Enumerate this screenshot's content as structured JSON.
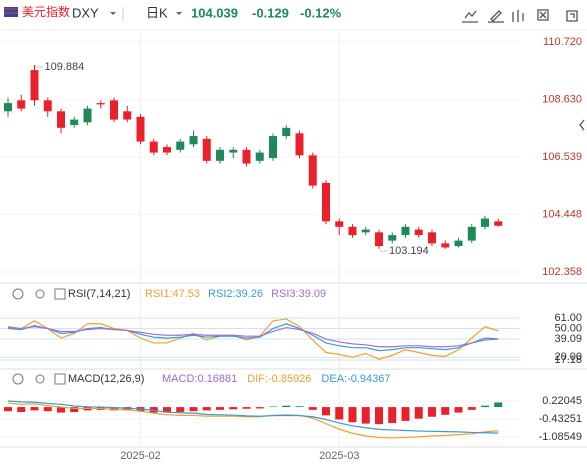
{
  "header": {
    "name": "美元指数",
    "code": "DXY",
    "period": "日K",
    "price": "104.039",
    "change": "-0.129",
    "change_pct": "-0.12%"
  },
  "chart_data": {
    "type": "candlestick",
    "categories": [
      null,
      null,
      null,
      null,
      null,
      null,
      null,
      null,
      null,
      null,
      "2025-02",
      null,
      null,
      null,
      null,
      null,
      null,
      null,
      null,
      null,
      null,
      null,
      null,
      null,
      null,
      "2025-03",
      null,
      null,
      null,
      null,
      null,
      null,
      null,
      null,
      null,
      null,
      null,
      null
    ],
    "ohlc": [
      [
        108.2,
        108.7,
        108.0,
        108.5
      ],
      [
        108.6,
        108.8,
        108.2,
        108.3
      ],
      [
        109.7,
        109.884,
        108.4,
        108.6
      ],
      [
        108.6,
        108.7,
        108.0,
        108.2
      ],
      [
        108.2,
        108.3,
        107.4,
        107.6
      ],
      [
        107.7,
        108.0,
        107.6,
        107.9
      ],
      [
        107.8,
        108.4,
        107.7,
        108.3
      ],
      [
        108.5,
        108.6,
        108.3,
        108.45
      ],
      [
        108.6,
        108.7,
        107.8,
        107.9
      ],
      [
        108.2,
        108.4,
        107.8,
        107.9
      ],
      [
        108.0,
        108.1,
        107.0,
        107.1
      ],
      [
        107.1,
        107.2,
        106.6,
        106.7
      ],
      [
        106.9,
        107.0,
        106.6,
        106.7
      ],
      [
        106.8,
        107.2,
        106.7,
        107.1
      ],
      [
        107.0,
        107.5,
        106.9,
        107.3
      ],
      [
        107.2,
        107.3,
        106.3,
        106.4
      ],
      [
        106.4,
        106.9,
        106.3,
        106.8
      ],
      [
        106.7,
        106.9,
        106.5,
        106.8
      ],
      [
        106.8,
        106.9,
        106.2,
        106.3
      ],
      [
        106.4,
        106.8,
        106.3,
        106.7
      ],
      [
        106.5,
        107.4,
        106.4,
        107.3
      ],
      [
        107.3,
        107.7,
        107.2,
        107.6
      ],
      [
        107.4,
        107.5,
        106.5,
        106.6
      ],
      [
        106.6,
        106.7,
        105.4,
        105.5
      ],
      [
        105.6,
        105.7,
        104.1,
        104.2
      ],
      [
        104.2,
        104.3,
        103.7,
        104.0
      ],
      [
        104.0,
        104.1,
        103.6,
        103.7
      ],
      [
        103.8,
        104.0,
        103.7,
        103.9
      ],
      [
        103.8,
        103.9,
        103.194,
        103.3
      ],
      [
        103.5,
        103.8,
        103.4,
        103.7
      ],
      [
        103.7,
        104.1,
        103.6,
        104.0
      ],
      [
        103.9,
        104.0,
        103.6,
        103.7
      ],
      [
        103.8,
        103.9,
        103.3,
        103.4
      ],
      [
        103.4,
        103.5,
        103.2,
        103.25
      ],
      [
        103.3,
        103.6,
        103.25,
        103.5
      ],
      [
        103.5,
        104.1,
        103.4,
        104.0
      ],
      [
        104.0,
        104.4,
        103.9,
        104.3
      ],
      [
        104.2,
        104.3,
        104.0,
        104.039
      ]
    ],
    "up_color": "#1e8a5a",
    "down_color": "#e8212b",
    "ylim": [
      102.358,
      110.72
    ],
    "yticks": [
      {
        "value": 110.72,
        "label": "110.720"
      },
      {
        "value": 108.63,
        "label": "108.630"
      },
      106.539,
      104.448,
      102.358
    ],
    "rsi": {
      "title": "RSI(7,14,21)",
      "ylim": [
        17.18,
        61
      ],
      "yticks": [
        {
          "value": 61,
          "label": "61.00"
        },
        {
          "value": 50,
          "label": "50.00"
        },
        39.09,
        {
          "value": 20,
          "label": "20.00"
        },
        17.18
      ],
      "series": [
        {
          "name": "RSI1:47.53",
          "color": "#f0a030",
          "values": [
            52,
            50,
            58,
            50,
            40,
            45,
            55,
            55,
            50,
            48,
            40,
            35,
            35,
            40,
            45,
            38,
            42,
            43,
            38,
            42,
            58,
            60,
            52,
            38,
            25,
            23,
            20,
            24,
            18,
            22,
            28,
            25,
            22,
            21,
            28,
            40,
            52,
            47.53
          ]
        },
        {
          "name": "RSI2:39.26",
          "color": "#3a9ad9",
          "values": [
            50,
            49,
            53,
            50,
            45,
            46,
            50,
            51,
            49,
            48,
            44,
            41,
            40,
            41,
            43,
            41,
            42,
            42,
            40,
            41,
            50,
            55,
            50,
            43,
            35,
            32,
            30,
            30,
            27,
            28,
            30,
            30,
            29,
            28,
            30,
            35,
            40,
            39.26
          ]
        },
        {
          "name": "RSI3:39.09",
          "color": "#a070d0",
          "values": [
            51,
            50,
            52,
            50,
            47,
            47,
            49,
            50,
            49,
            48,
            46,
            44,
            43,
            43,
            44,
            43,
            43,
            43,
            42,
            42,
            47,
            51,
            49,
            45,
            39,
            36,
            34,
            33,
            31,
            31,
            32,
            32,
            31,
            31,
            32,
            35,
            38,
            39.09
          ]
        }
      ]
    },
    "macd": {
      "title": "MACD(12,26,9)",
      "ylim": [
        -1.08549,
        0.22045
      ],
      "yticks": [
        0.22045,
        -0.43251,
        -1.08549
      ],
      "hist": {
        "name": "MACD:0.16881",
        "color": "#9b6bd0",
        "values": [
          -0.15,
          -0.18,
          -0.12,
          -0.15,
          -0.2,
          -0.18,
          -0.12,
          -0.1,
          -0.12,
          -0.12,
          -0.15,
          -0.2,
          -0.2,
          -0.18,
          -0.15,
          -0.12,
          -0.1,
          -0.08,
          -0.06,
          -0.05,
          0.02,
          0.05,
          0.03,
          -0.1,
          -0.3,
          -0.45,
          -0.55,
          -0.6,
          -0.62,
          -0.58,
          -0.5,
          -0.42,
          -0.35,
          -0.28,
          -0.2,
          -0.1,
          0.05,
          0.16881
        ]
      },
      "series": [
        {
          "name": "DIF:-0.85926",
          "color": "#f0a030",
          "values": [
            0.15,
            0.1,
            0.12,
            0.05,
            0,
            -0.05,
            -0.05,
            -0.05,
            -0.08,
            -0.1,
            -0.15,
            -0.22,
            -0.28,
            -0.3,
            -0.3,
            -0.33,
            -0.33,
            -0.33,
            -0.35,
            -0.35,
            -0.3,
            -0.28,
            -0.3,
            -0.4,
            -0.6,
            -0.8,
            -0.95,
            -1.05,
            -1.1,
            -1.12,
            -1.1,
            -1.08,
            -1.05,
            -1.03,
            -1.0,
            -0.97,
            -0.9,
            -0.85926
          ]
        },
        {
          "name": "DEA:-0.94367",
          "color": "#3a9ad9",
          "values": [
            0.22,
            0.19,
            0.18,
            0.13,
            0.1,
            0.04,
            0.01,
            0,
            -0.02,
            -0.04,
            -0.07,
            -0.12,
            -0.18,
            -0.21,
            -0.22,
            -0.27,
            -0.28,
            -0.29,
            -0.32,
            -0.33,
            -0.31,
            -0.3,
            -0.31,
            -0.35,
            -0.45,
            -0.58,
            -0.68,
            -0.75,
            -0.81,
            -0.83,
            -0.85,
            -0.87,
            -0.88,
            -0.89,
            -0.9,
            -0.92,
            -0.93,
            -0.94367
          ]
        }
      ]
    }
  }
}
